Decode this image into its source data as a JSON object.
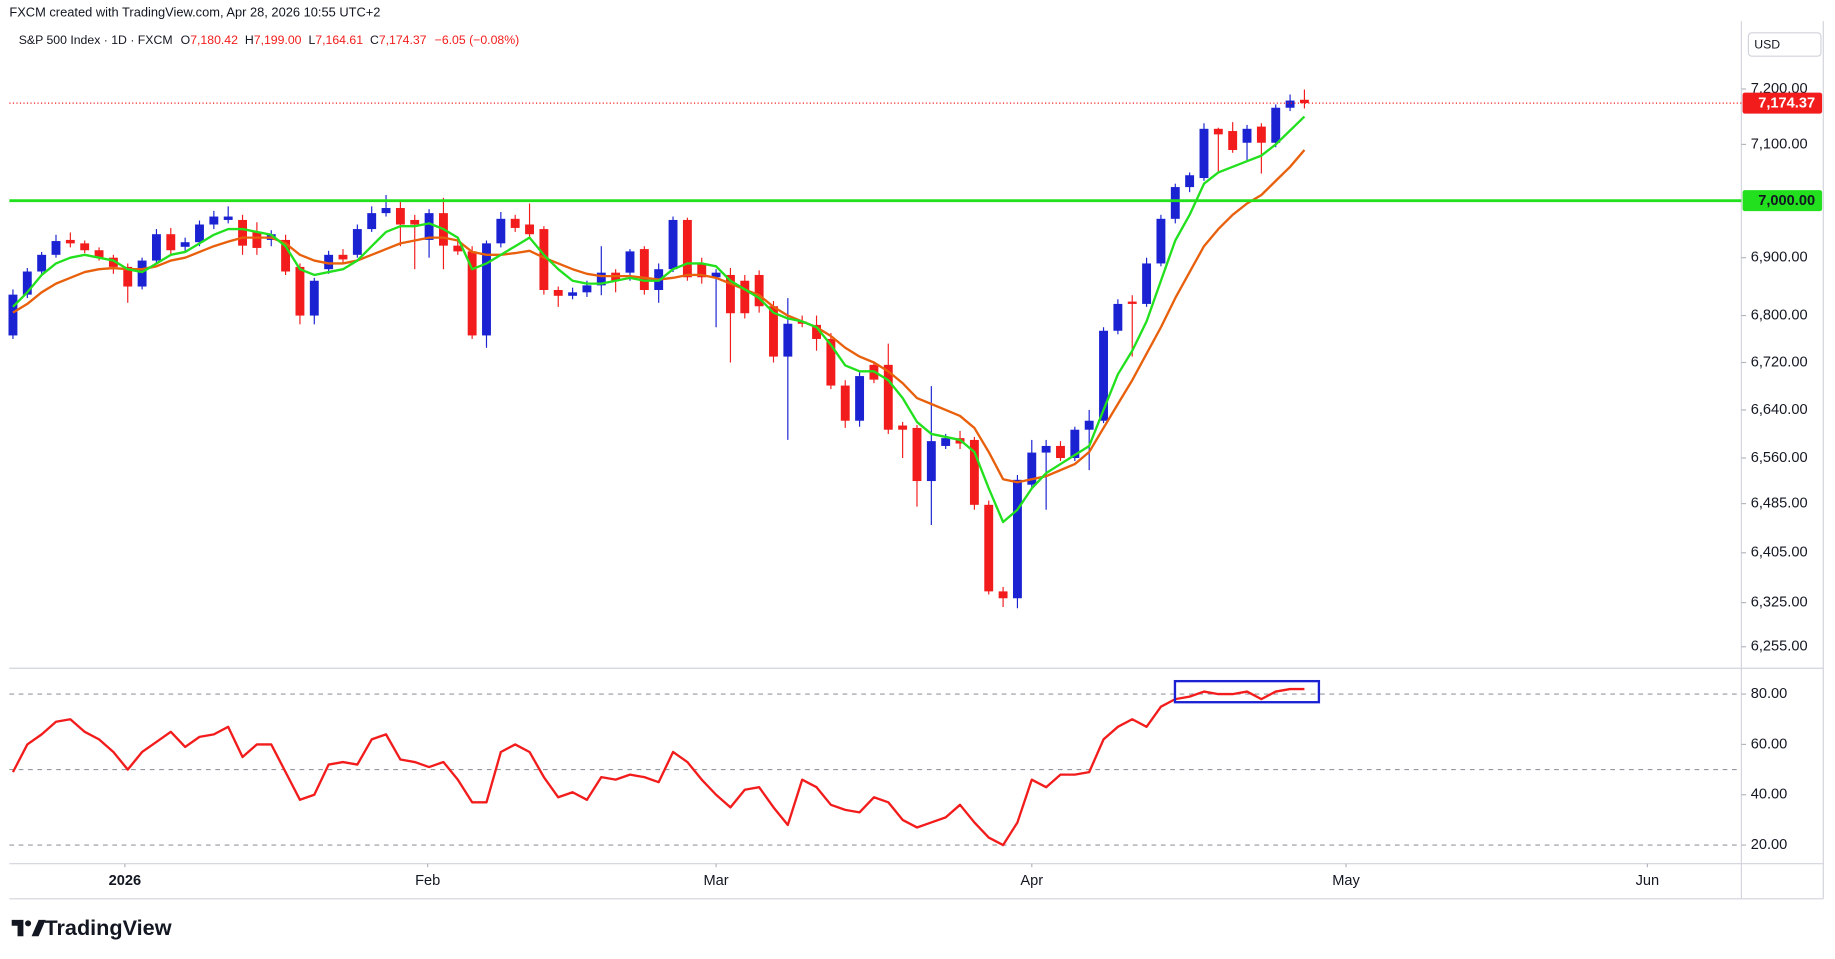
{
  "header": {
    "attribution": "FXCM created with TradingView.com, Apr 28, 2026 10:55 UTC+2",
    "logo": "TradingView"
  },
  "chart_data": [
    {
      "type": "candlestick",
      "symbol": "S&P 500 Index · 1D · FXCM",
      "legend": [
        {
          "key": "O",
          "value": "7,180.42"
        },
        {
          "key": "H",
          "value": "7,199.00"
        },
        {
          "key": "L",
          "value": "7,164.61"
        },
        {
          "key": "C",
          "value": "7,174.37"
        }
      ],
      "change": "−6.05 (−0.08%)",
      "currency": "USD",
      "up_color": "#1a22d2",
      "down_color": "#f21c1c",
      "open": [
        6766,
        6836,
        6876,
        6905,
        6931,
        6925,
        6913,
        6900,
        6884,
        6850,
        6895,
        6941,
        6919,
        6927,
        6958,
        6966,
        6966,
        6945,
        6931,
        6931,
        6884,
        6800,
        6880,
        6905,
        6905,
        6950,
        6978,
        6987,
        6966,
        6931,
        6978,
        6921,
        6911,
        6766,
        6925,
        6968,
        6958,
        6950,
        6844,
        6834,
        6840,
        6852,
        6874,
        6874,
        6915,
        6844,
        6880,
        6966,
        6890,
        6866,
        6870,
        6860,
        6870,
        6816,
        6730,
        6790,
        6784,
        6760,
        6681,
        6622,
        6716,
        6716,
        6614,
        6610,
        6522,
        6580,
        6593,
        6590,
        6483,
        6343,
        6332,
        6516,
        6569,
        6580,
        6560,
        6607,
        6622,
        6774,
        6824,
        6820,
        6890,
        6968,
        7024,
        7040,
        7128,
        7124,
        7103,
        7132,
        7103,
        7166,
        7180.42
      ],
      "high": [
        6845,
        6882,
        6910,
        6940,
        6944,
        6930,
        6918,
        6905,
        6890,
        6900,
        6950,
        6952,
        6935,
        6965,
        6982,
        6990,
        6975,
        6962,
        6948,
        6940,
        6890,
        6865,
        6912,
        6915,
        6958,
        6990,
        7010,
        7000,
        6975,
        6985,
        7005,
        6935,
        6920,
        6930,
        6980,
        6975,
        6995,
        6955,
        6850,
        6848,
        6860,
        6920,
        6880,
        6915,
        6920,
        6890,
        6972,
        6970,
        6900,
        6880,
        6882,
        6870,
        6878,
        6825,
        6830,
        6800,
        6800,
        6770,
        6690,
        6705,
        6722,
        6752,
        6620,
        6615,
        6680,
        6600,
        6605,
        6595,
        6490,
        6350,
        6532,
        6590,
        6590,
        6588,
        6612,
        6640,
        6780,
        6828,
        6835,
        6900,
        6975,
        7030,
        7050,
        7138,
        7130,
        7140,
        7135,
        7138,
        7172,
        7190,
        7199
      ],
      "low": [
        6760,
        6830,
        6870,
        6900,
        6918,
        6908,
        6895,
        6872,
        6822,
        6845,
        6890,
        6905,
        6912,
        6920,
        6950,
        6960,
        6905,
        6905,
        6920,
        6870,
        6785,
        6785,
        6872,
        6890,
        6900,
        6945,
        6972,
        6920,
        6880,
        6900,
        6880,
        6905,
        6760,
        6745,
        6918,
        6945,
        6935,
        6836,
        6815,
        6828,
        6832,
        6835,
        6840,
        6860,
        6836,
        6822,
        6875,
        6860,
        6855,
        6780,
        6720,
        6795,
        6805,
        6720,
        6590,
        6780,
        6740,
        6675,
        6610,
        6612,
        6685,
        6600,
        6560,
        6480,
        6450,
        6575,
        6575,
        6475,
        6338,
        6318,
        6316,
        6510,
        6475,
        6555,
        6555,
        6540,
        6618,
        6768,
        6730,
        6815,
        6885,
        6960,
        7015,
        7035,
        7050,
        7085,
        7070,
        7048,
        7095,
        7160,
        7164.61
      ],
      "close": [
        6836,
        6876,
        6905,
        6929,
        6925,
        6913,
        6900,
        6884,
        6850,
        6895,
        6941,
        6913,
        6927,
        6958,
        6972,
        6972,
        6921,
        6917,
        6941,
        6876,
        6800,
        6860,
        6905,
        6897,
        6950,
        6978,
        6987,
        6958,
        6958,
        6978,
        6921,
        6911,
        6766,
        6925,
        6968,
        6952,
        6941,
        6844,
        6834,
        6840,
        6852,
        6874,
        6860,
        6911,
        6844,
        6880,
        6966,
        6866,
        6866,
        6874,
        6804,
        6804,
        6816,
        6730,
        6786,
        6786,
        6760,
        6681,
        6622,
        6697,
        6691,
        6607,
        6607,
        6522,
        6588,
        6593,
        6584,
        6483,
        6343,
        6332,
        6524,
        6569,
        6580,
        6560,
        6607,
        6622,
        6774,
        6820,
        6820,
        6890,
        6968,
        7024,
        7045,
        7128,
        7118,
        7090,
        7128,
        7103,
        7166,
        7179,
        7174.37
      ],
      "series": [
        {
          "color": "#e8600c",
          "values": [
            6805,
            6820,
            6840,
            6855,
            6865,
            6875,
            6880,
            6882,
            6880,
            6880,
            6885,
            6895,
            6900,
            6910,
            6920,
            6928,
            6935,
            6935,
            6935,
            6925,
            6905,
            6895,
            6890,
            6890,
            6895,
            6905,
            6915,
            6925,
            6930,
            6935,
            6935,
            6930,
            6910,
            6905,
            6905,
            6908,
            6912,
            6900,
            6890,
            6880,
            6872,
            6868,
            6868,
            6868,
            6865,
            6862,
            6865,
            6870,
            6870,
            6865,
            6855,
            6845,
            6835,
            6815,
            6800,
            6790,
            6780,
            6765,
            6745,
            6730,
            6720,
            6705,
            6685,
            6660,
            6650,
            6640,
            6630,
            6610,
            6570,
            6525,
            6520,
            6525,
            6530,
            6540,
            6550,
            6570,
            6610,
            6650,
            6690,
            6735,
            6780,
            6830,
            6875,
            6920,
            6950,
            6975,
            6995,
            7010,
            7035,
            7060,
            7090
          ]
        },
        {
          "color": "#22e01e",
          "values": [
            6815,
            6840,
            6870,
            6890,
            6900,
            6905,
            6900,
            6895,
            6880,
            6875,
            6890,
            6905,
            6910,
            6925,
            6940,
            6950,
            6950,
            6945,
            6940,
            6920,
            6880,
            6870,
            6875,
            6880,
            6895,
            6920,
            6945,
            6955,
            6955,
            6960,
            6950,
            6935,
            6880,
            6890,
            6905,
            6920,
            6935,
            6905,
            6880,
            6860,
            6855,
            6855,
            6860,
            6865,
            6860,
            6860,
            6880,
            6890,
            6890,
            6885,
            6860,
            6845,
            6830,
            6805,
            6795,
            6790,
            6780,
            6750,
            6715,
            6705,
            6705,
            6690,
            6660,
            6620,
            6600,
            6595,
            6590,
            6570,
            6510,
            6455,
            6475,
            6510,
            6535,
            6550,
            6565,
            6580,
            6640,
            6700,
            6740,
            6790,
            6860,
            6930,
            6975,
            7030,
            7050,
            7060,
            7070,
            7080,
            7100,
            7125,
            7150
          ]
        }
      ],
      "log_scale": true,
      "ylim": [
        6223,
        7320
      ],
      "yticks": [
        {
          "value": 6255,
          "label": "6,255.00"
        },
        {
          "value": 6325,
          "label": "6,325.00"
        },
        {
          "value": 6405,
          "label": "6,405.00"
        },
        {
          "value": 6485,
          "label": "6,485.00"
        },
        {
          "value": 6560,
          "label": "6,560.00"
        },
        {
          "value": 6640,
          "label": "6,640.00"
        },
        {
          "value": 6720,
          "label": "6,720.00"
        },
        {
          "value": 6800,
          "label": "6,800.00"
        },
        {
          "value": 6900,
          "label": "6,900.00"
        },
        {
          "value": 7100,
          "label": "7,100.00"
        },
        {
          "value": 7200,
          "label": "7,200.00"
        }
      ],
      "hlines": [
        {
          "value": 7000,
          "label": "7,000.00",
          "color": "#22e01e"
        }
      ],
      "last_price": {
        "label": "7,174.37",
        "color": "#f21c1c"
      },
      "xlim": [
        -0.25,
        120.45
      ],
      "xticks": [
        {
          "value": 7.8,
          "label": "2026"
        },
        {
          "value": 28.9,
          "label": "Feb"
        },
        {
          "value": 49,
          "label": "Mar"
        },
        {
          "value": 71,
          "label": "Apr"
        },
        {
          "value": 92.9,
          "label": "May"
        },
        {
          "value": 113.9,
          "label": "Jun"
        }
      ]
    },
    {
      "type": "line",
      "series": [
        {
          "color": "#f21c1c",
          "values": [
            49,
            60,
            64,
            69,
            70,
            65,
            62,
            57,
            50,
            57,
            61,
            65,
            59,
            63,
            64,
            67,
            55,
            60,
            60,
            49,
            38,
            40,
            52,
            53,
            52,
            62,
            64,
            54,
            53,
            51,
            53,
            46,
            37,
            37,
            57,
            60,
            57,
            47,
            39,
            41,
            38,
            47,
            46,
            48,
            47,
            45,
            57,
            53,
            46,
            40,
            35,
            42,
            43,
            35,
            28,
            46,
            43,
            36,
            34,
            33,
            39,
            37,
            30,
            27,
            29,
            31,
            36,
            29,
            23,
            20,
            29,
            46,
            43,
            48,
            48,
            49,
            62,
            67,
            70,
            67,
            75,
            78,
            79,
            81,
            80,
            80,
            81,
            78,
            81,
            82,
            82
          ]
        }
      ],
      "ylim": [
        12.6,
        89.8
      ],
      "yticks": [
        {
          "value": 20,
          "label": "20.00"
        },
        {
          "value": 40,
          "label": "40.00"
        },
        {
          "value": 60,
          "label": "60.00"
        },
        {
          "value": 80,
          "label": "80.00"
        }
      ],
      "levels": [
        80,
        50,
        20
      ]
    }
  ]
}
